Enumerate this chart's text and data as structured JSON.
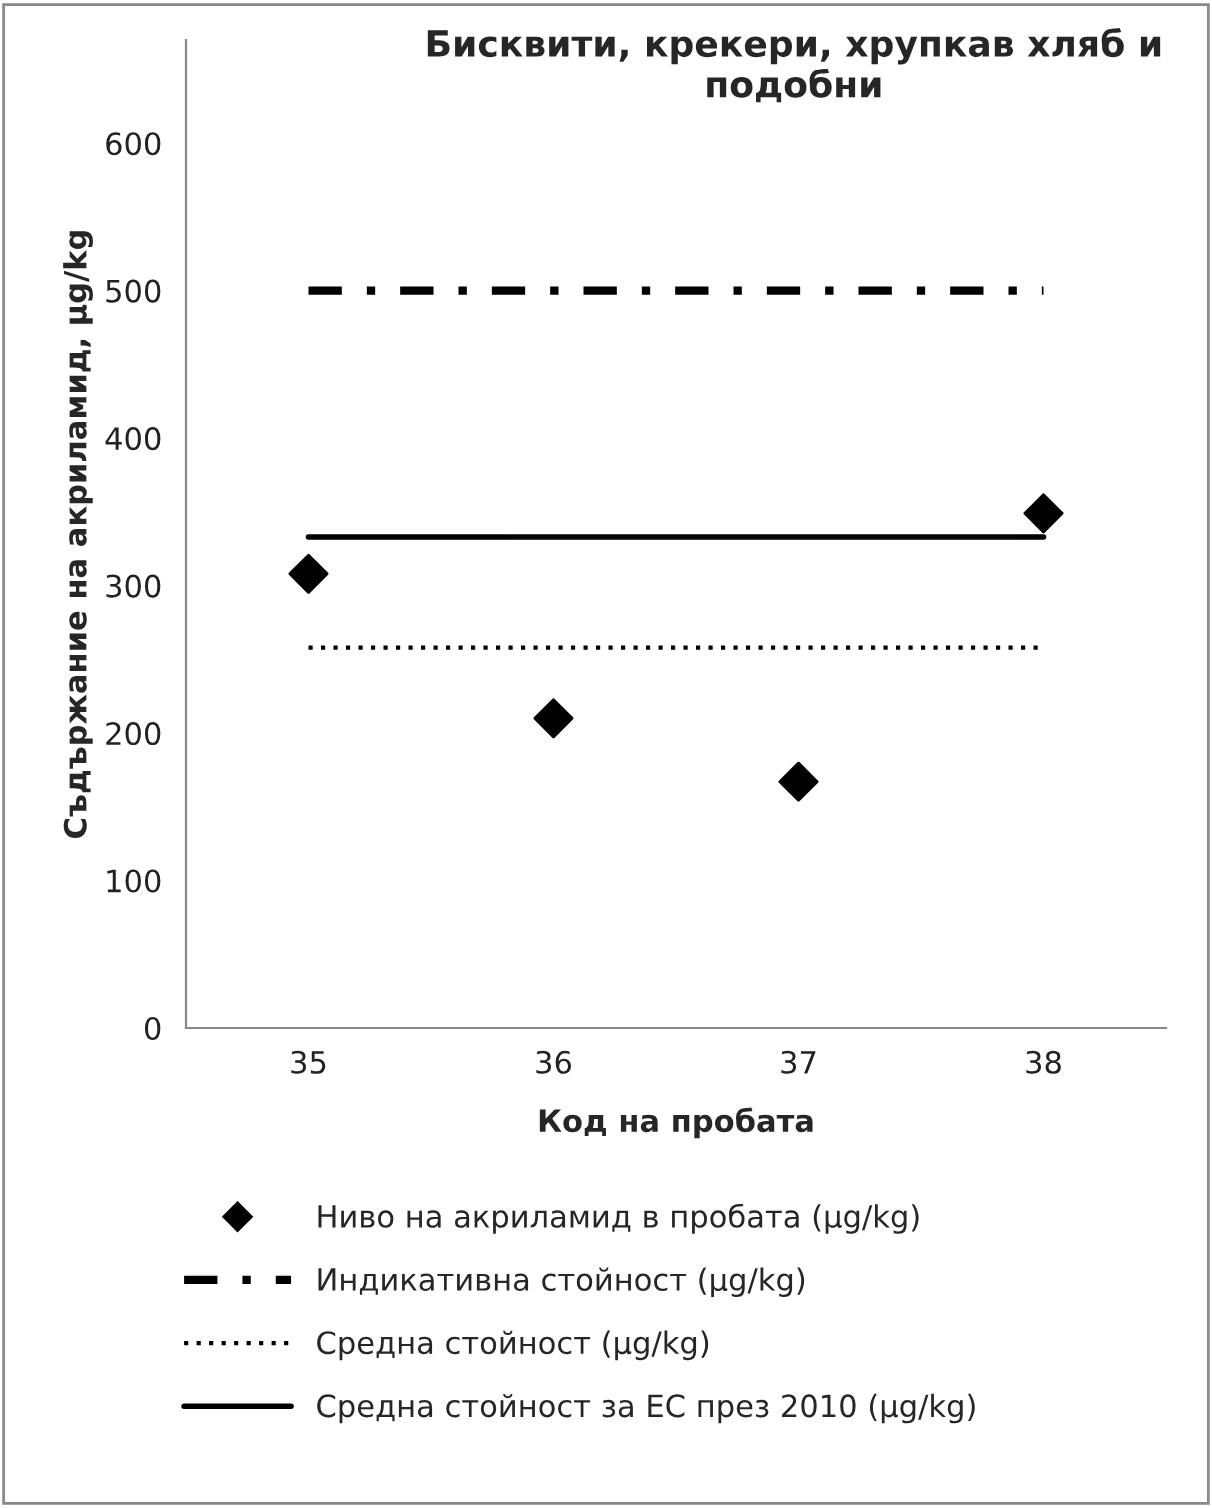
{
  "chart_data": {
    "type": "scatter",
    "title": "Бисквити, крекери, хрупкав хляб и подобни",
    "xlabel": "Код на пробата",
    "ylabel": "Съдържание на акриламид, µg/kg",
    "categories": [
      "35",
      "36",
      "37",
      "38"
    ],
    "series": [
      {
        "name": "Ниво на акриламид в пробата (µg/kg)",
        "color": "#000000",
        "marker": "diamond",
        "values": [
          308,
          210,
          167,
          349
        ]
      },
      {
        "name": "Индикативна стойност (µg/kg)",
        "type": "line",
        "color": "#000000",
        "line_style": "dashdot",
        "values": [
          500,
          500,
          500,
          500
        ]
      },
      {
        "name": "Средна стойност (µg/kg)",
        "type": "line",
        "color": "#000000",
        "line_style": "dotted",
        "values": [
          258,
          258,
          258,
          258
        ]
      },
      {
        "name": "Средна стойност за ЕС през 2010 (µg/kg)",
        "type": "line",
        "color": "#000000",
        "line_style": "solid",
        "values": [
          333,
          333,
          333,
          333
        ]
      }
    ],
    "ylim": [
      0,
      670
    ],
    "yticks": [
      0,
      100,
      200,
      300,
      400,
      500,
      600
    ],
    "grid": false,
    "legend": "bottom"
  }
}
